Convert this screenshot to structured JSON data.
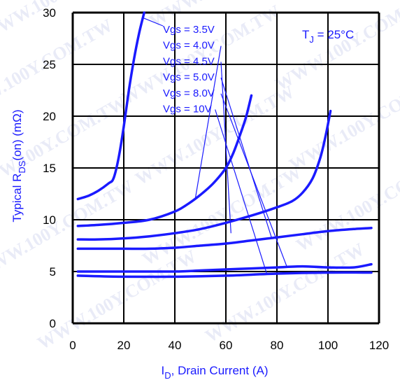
{
  "colors": {
    "curve": "#1a1aff",
    "grid": "#000000",
    "text_blue": "#1a1aff",
    "watermark": "#d8dcf2"
  },
  "watermark": "WWW.100Y.COM.TW",
  "chart_data": {
    "type": "line",
    "title": "",
    "annotation": {
      "prefix": "T",
      "sub": "J",
      "suffix": " = 25°C"
    },
    "xlabel": {
      "prefix": "I",
      "sub": "D",
      "suffix": ", Drain Current (A)"
    },
    "ylabel": {
      "prefix": "Typical R",
      "sub": "DS",
      "suffix": "(on) (mΩ)"
    },
    "xlim": [
      0,
      120
    ],
    "ylim": [
      0,
      30
    ],
    "xticks": [
      0,
      20,
      40,
      60,
      80,
      100,
      120
    ],
    "yticks": [
      0,
      5,
      10,
      15,
      20,
      25,
      30
    ],
    "xtick_labels": [
      "0",
      "20",
      "40",
      "60",
      "80",
      "100",
      "120"
    ],
    "ytick_labels": [
      "0",
      "5",
      "10",
      "15",
      "20",
      "25",
      "30"
    ],
    "grid": true,
    "series": [
      {
        "name": "Vgs = 3.5V",
        "points": [
          [
            2,
            12
          ],
          [
            6,
            12.3
          ],
          [
            10,
            12.8
          ],
          [
            14,
            13.5
          ],
          [
            16,
            14
          ],
          [
            18,
            16
          ],
          [
            20,
            19
          ],
          [
            22,
            22.5
          ],
          [
            24,
            25.5
          ],
          [
            26,
            28
          ],
          [
            28,
            30
          ]
        ]
      },
      {
        "name": "Vgs = 4.0V",
        "points": [
          [
            2,
            9.4
          ],
          [
            10,
            9.5
          ],
          [
            20,
            9.7
          ],
          [
            30,
            10
          ],
          [
            40,
            10.8
          ],
          [
            45,
            11.5
          ],
          [
            50,
            12.4
          ],
          [
            55,
            13.5
          ],
          [
            60,
            15
          ],
          [
            63,
            16.5
          ],
          [
            66,
            18.5
          ],
          [
            68,
            20
          ],
          [
            70,
            22
          ]
        ]
      },
      {
        "name": "Vgs = 4.5V",
        "points": [
          [
            2,
            8.1
          ],
          [
            10,
            8.1
          ],
          [
            20,
            8.2
          ],
          [
            30,
            8.4
          ],
          [
            40,
            8.7
          ],
          [
            50,
            9.1
          ],
          [
            60,
            9.7
          ],
          [
            70,
            10.4
          ],
          [
            80,
            11.2
          ],
          [
            86,
            11.8
          ],
          [
            90,
            12.6
          ],
          [
            94,
            14
          ],
          [
            97,
            16
          ],
          [
            99,
            18
          ],
          [
            101,
            20.5
          ]
        ]
      },
      {
        "name": "Vgs = 5.0V",
        "points": [
          [
            2,
            7.2
          ],
          [
            10,
            7.2
          ],
          [
            20,
            7.2
          ],
          [
            30,
            7.2
          ],
          [
            40,
            7.3
          ],
          [
            50,
            7.5
          ],
          [
            60,
            7.7
          ],
          [
            70,
            8.0
          ],
          [
            80,
            8.3
          ],
          [
            90,
            8.6
          ],
          [
            100,
            8.9
          ],
          [
            110,
            9.1
          ],
          [
            117,
            9.2
          ]
        ]
      },
      {
        "name": "Vgs = 8.0V",
        "points": [
          [
            2,
            5.0
          ],
          [
            20,
            5.0
          ],
          [
            40,
            5.0
          ],
          [
            50,
            5.1
          ],
          [
            60,
            5.2
          ],
          [
            70,
            5.3
          ],
          [
            80,
            5.4
          ],
          [
            90,
            5.5
          ],
          [
            100,
            5.4
          ],
          [
            110,
            5.4
          ],
          [
            117,
            5.7
          ]
        ]
      },
      {
        "name": "Vgs = 10V",
        "points": [
          [
            2,
            4.6
          ],
          [
            20,
            4.5
          ],
          [
            40,
            4.5
          ],
          [
            60,
            4.6
          ],
          [
            80,
            4.8
          ],
          [
            100,
            4.9
          ],
          [
            117,
            4.9
          ]
        ]
      }
    ]
  }
}
